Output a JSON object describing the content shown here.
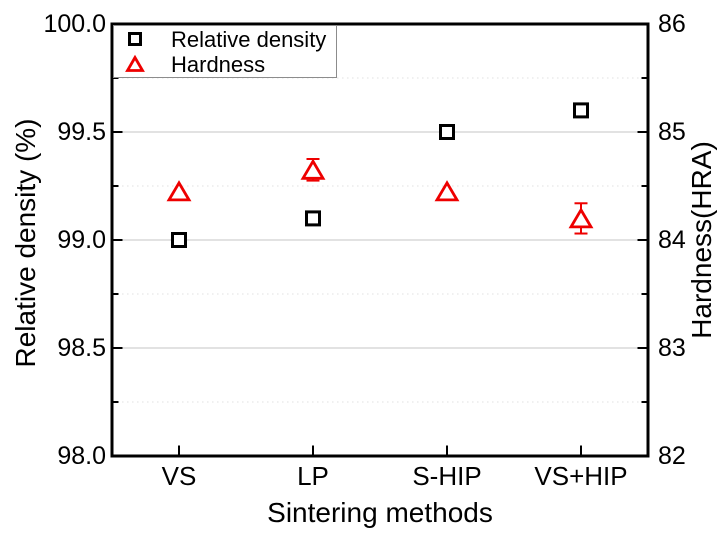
{
  "chart_data": {
    "type": "scatter",
    "title": "",
    "categories": [
      "VS",
      "LP",
      "S-HIP",
      "VS+HIP"
    ],
    "x_axis": {
      "label": "Sintering methods"
    },
    "left_axis": {
      "label": "Relative density (%)",
      "min": 98.0,
      "max": 100.0,
      "major_step": 0.5,
      "minor_step": 0.25,
      "major_tick_labels": [
        "98.0",
        "98.5",
        "99.0",
        "99.5",
        "100.0"
      ]
    },
    "right_axis": {
      "label": "Hardness(HRA)",
      "min": 82,
      "max": 86,
      "major_step": 1,
      "minor_step": 0.5,
      "major_tick_labels": [
        "82",
        "83",
        "84",
        "85",
        "86"
      ]
    },
    "series": [
      {
        "name": "Relative density",
        "axis": "left",
        "marker": "open-square",
        "color": "#000000",
        "values": [
          99.0,
          99.1,
          99.5,
          99.6
        ],
        "errors": [
          0,
          0,
          0,
          0
        ]
      },
      {
        "name": "Hardness",
        "axis": "right",
        "marker": "open-triangle",
        "color": "#ee0000",
        "values": [
          84.45,
          84.65,
          84.45,
          84.2
        ],
        "errors": [
          0,
          0.1,
          0,
          0.14
        ]
      }
    ],
    "legend": {
      "position": "top-left",
      "items": [
        {
          "label": "Relative density",
          "icon": "square-icon",
          "color": "#000000"
        },
        {
          "label": "Hardness",
          "icon": "triangle-icon",
          "color": "#ee0000"
        }
      ]
    },
    "grid": {
      "major_style": "solid",
      "minor_style": "dotted",
      "major_color": "#c6c6c6",
      "minor_color": "#e0e0e0"
    },
    "frame_color": "#000000"
  }
}
